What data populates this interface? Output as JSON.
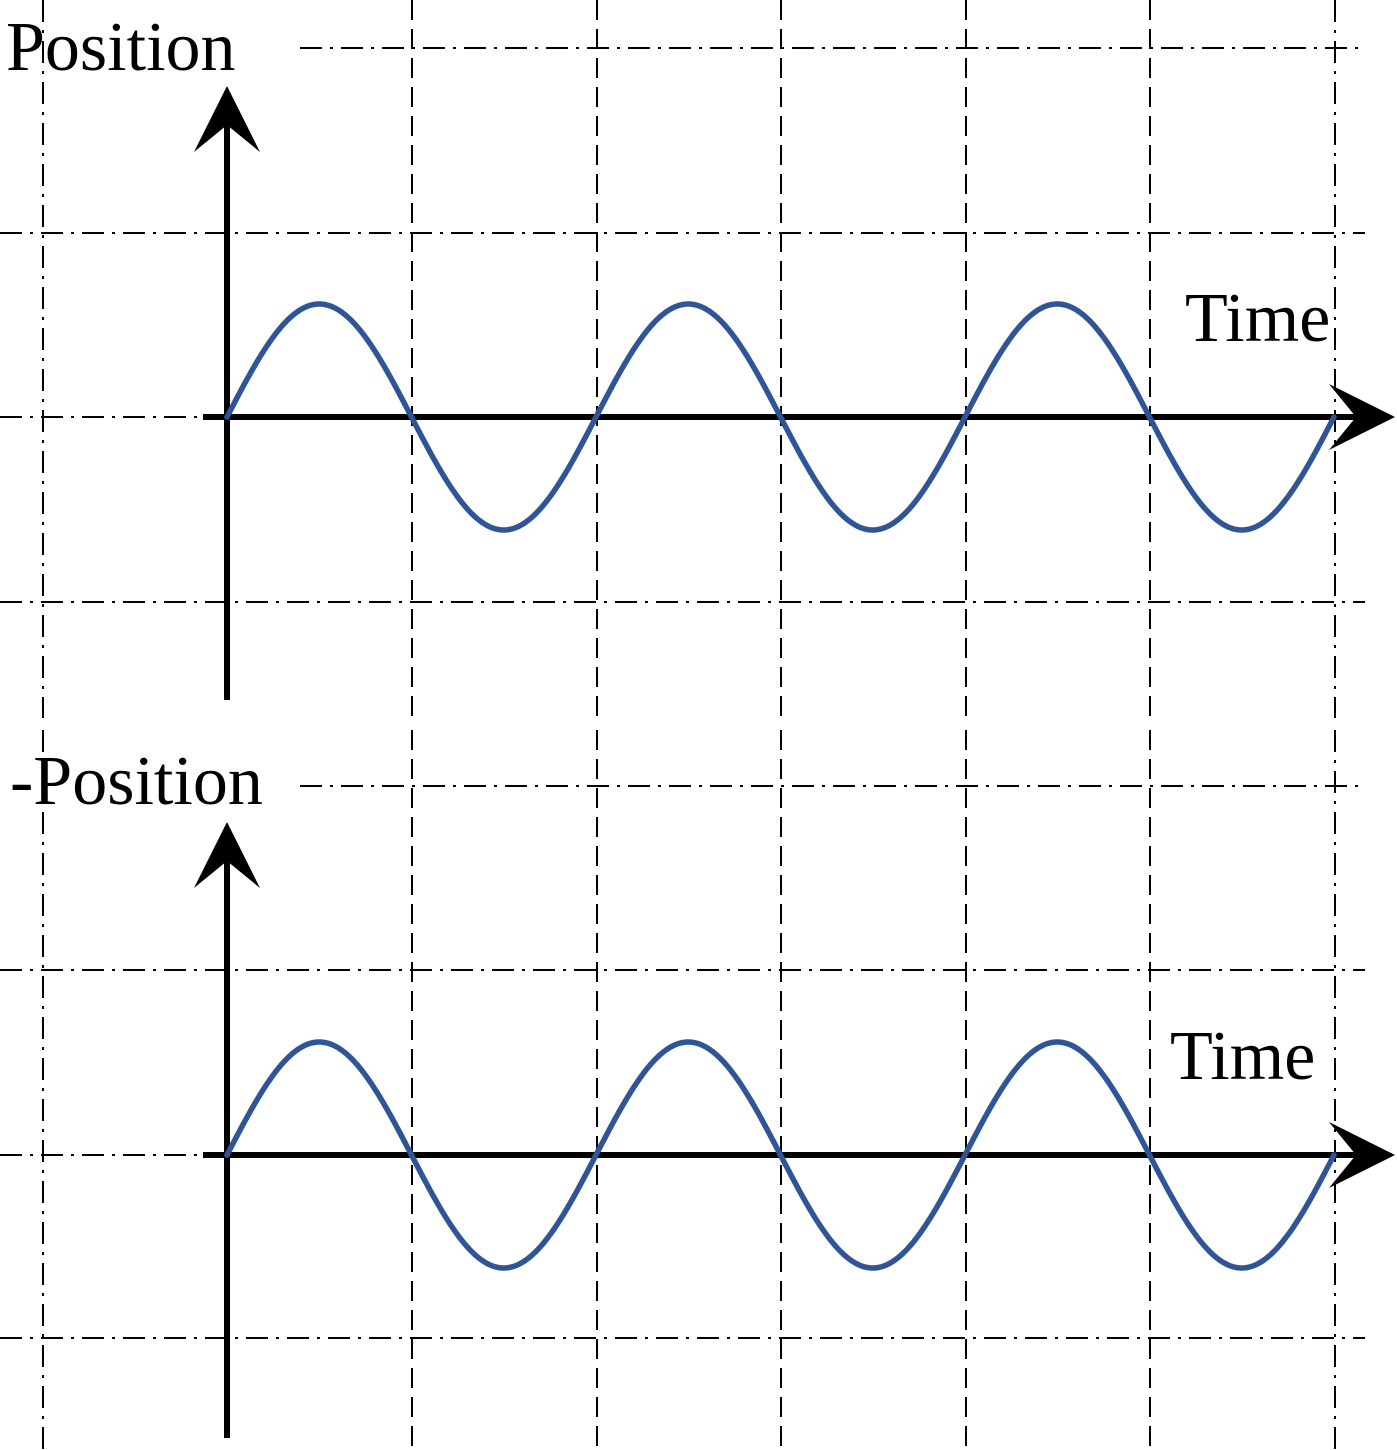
{
  "colors": {
    "series": "#2f5597",
    "axis": "#000000",
    "grid": "#000000"
  },
  "chart_data": [
    {
      "type": "line",
      "title": "",
      "xlabel": "Time",
      "ylabel": "Position",
      "grid": "dash-dot",
      "x_ticks_cycles_per_cell": 0.5,
      "series": [
        {
          "function": "sine",
          "amplitude": 1,
          "cycles": 3,
          "phase": 0
        }
      ],
      "ylim": [
        -1.6,
        2.6
      ],
      "xlim": [
        0,
        3
      ]
    },
    {
      "type": "line",
      "title": "",
      "xlabel": "Time",
      "ylabel": "-Position",
      "grid": "dash-dot",
      "x_ticks_cycles_per_cell": 0.5,
      "series": [
        {
          "function": "sine",
          "amplitude": 1,
          "cycles": 3,
          "phase": 0
        }
      ],
      "ylim": [
        -1.6,
        2.6
      ],
      "xlim": [
        0,
        3
      ]
    }
  ]
}
